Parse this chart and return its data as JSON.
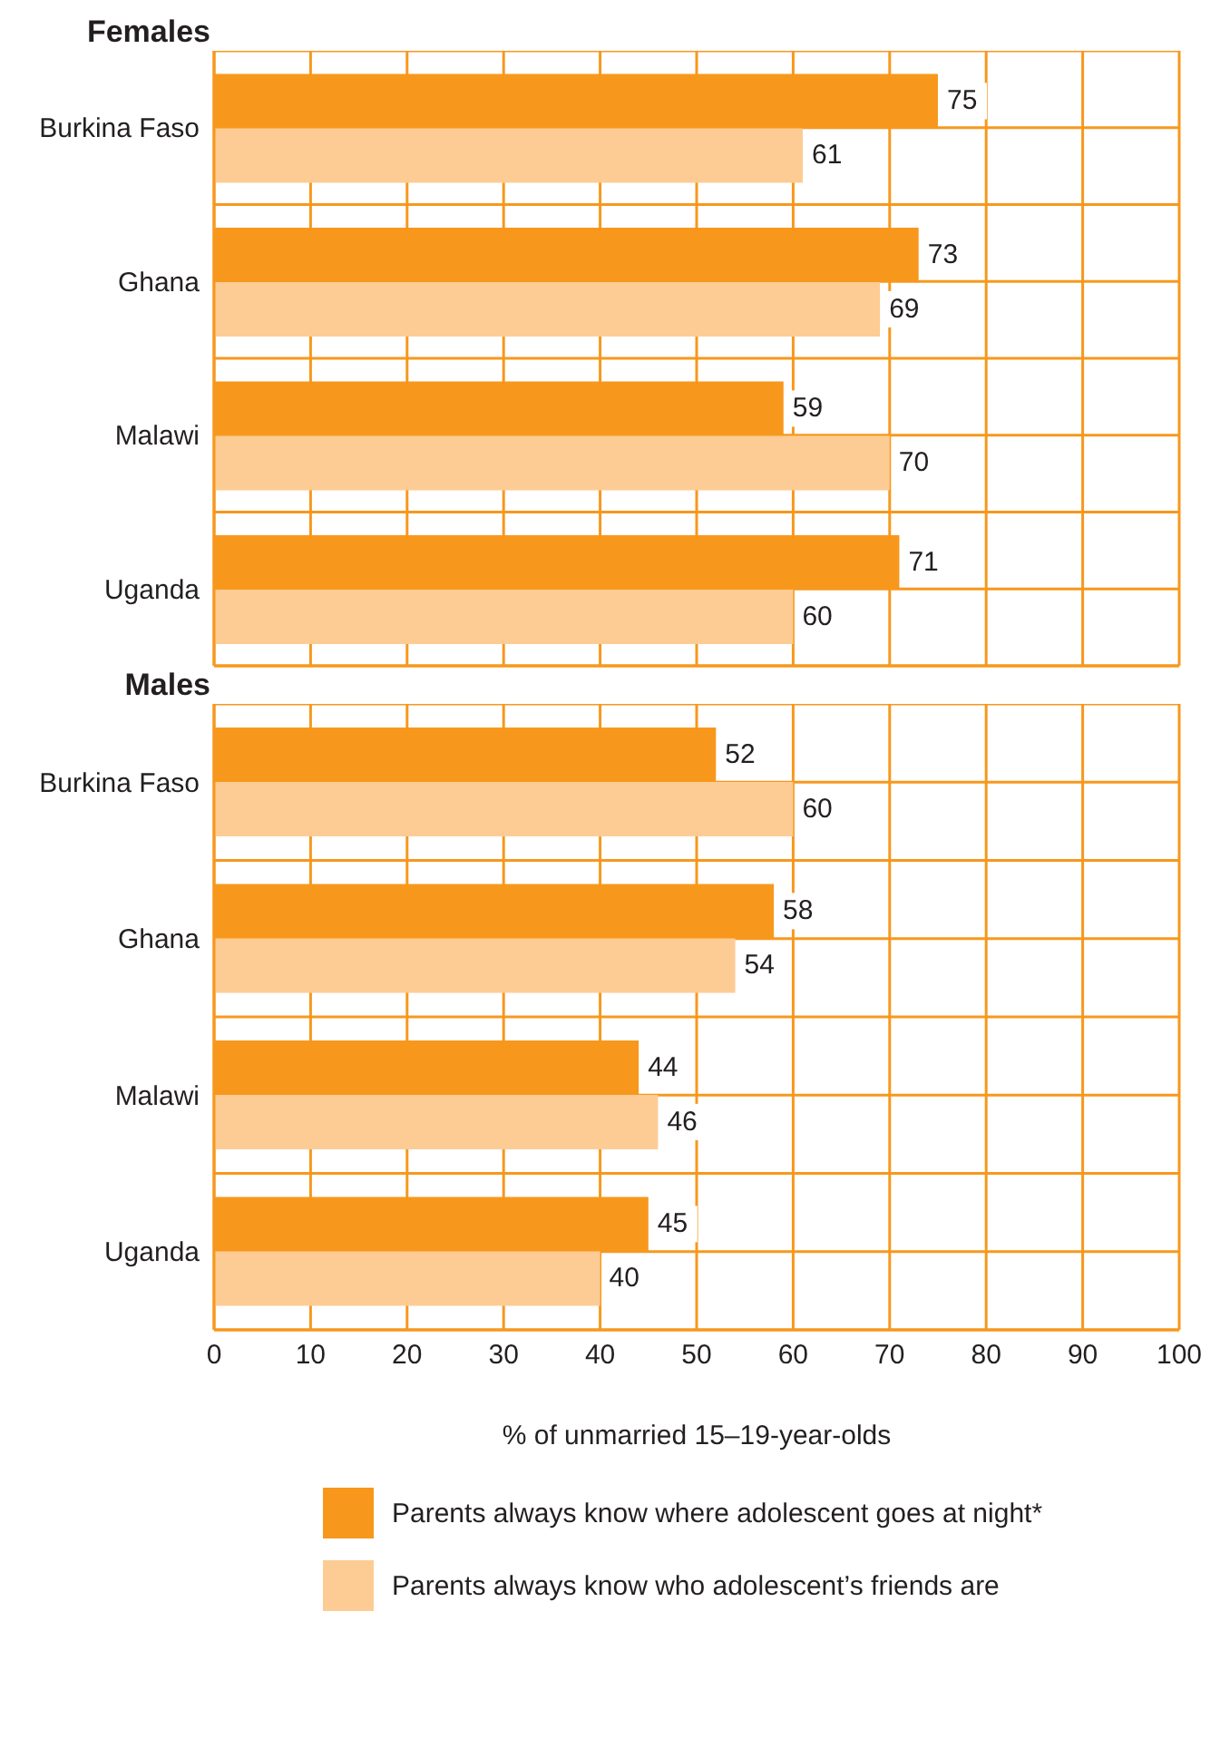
{
  "chart_data": [
    {
      "type": "bar",
      "orientation": "horizontal",
      "title": "Females",
      "categories": [
        "Burkina Faso",
        "Ghana",
        "Malawi",
        "Uganda"
      ],
      "series": [
        {
          "color": "#f7981d",
          "values": [
            75,
            73,
            59,
            71
          ]
        },
        {
          "color": "#fdcc94",
          "values": [
            61,
            69,
            70,
            60
          ]
        }
      ],
      "xlim": [
        0,
        100
      ],
      "tick_labels": "y",
      "grid": true,
      "data_labels": true
    },
    {
      "type": "bar",
      "orientation": "horizontal",
      "title": "Males",
      "categories": [
        "Burkina Faso",
        "Ghana",
        "Malawi",
        "Uganda"
      ],
      "series": [
        {
          "name": "Parents always know where adolescent goes at night*",
          "color": "#f7981d",
          "values": [
            52,
            58,
            44,
            45
          ]
        },
        {
          "name": "Parents always know who adolescent’s friends are",
          "color": "#fdcc94",
          "values": [
            60,
            54,
            46,
            40
          ]
        }
      ],
      "xlim": [
        0,
        100
      ],
      "xticks": [
        0,
        10,
        20,
        30,
        40,
        50,
        60,
        70,
        80,
        90,
        100
      ],
      "xlabel": "% of unmarried 15–19-year-olds",
      "grid": true,
      "data_labels": true,
      "legend": "bottom"
    }
  ]
}
